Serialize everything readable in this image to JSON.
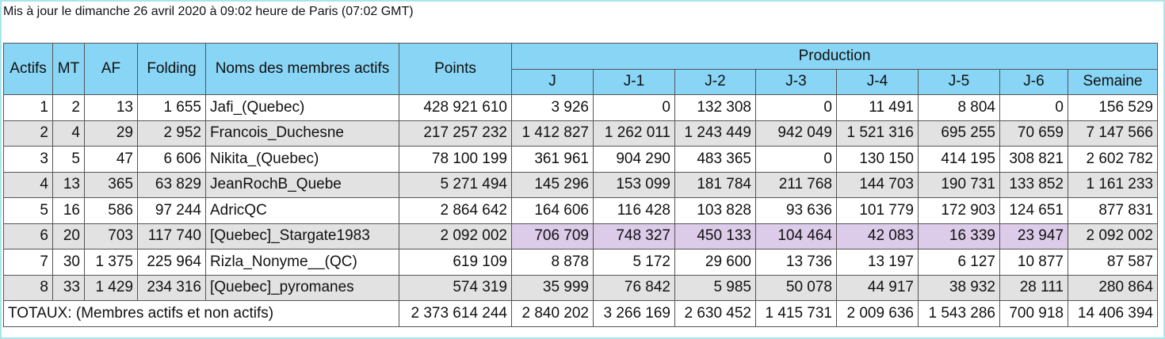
{
  "header": {
    "updated": "Mis à jour le dimanche 26 avril 2020 à 09:02 heure de Paris (07:02 GMT)"
  },
  "table": {
    "columns": [
      "Actifs",
      "MT",
      "AF",
      "Folding",
      "Noms des membres actifs",
      "Points"
    ],
    "production_label": "Production",
    "production_columns": [
      "J",
      "J-1",
      "J-2",
      "J-3",
      "J-4",
      "J-5",
      "J-6",
      "Semaine"
    ],
    "rows": [
      [
        "1",
        "2",
        "13",
        "1 655",
        "Jafi_(Quebec)",
        "428 921 610",
        "3 926",
        "0",
        "132 308",
        "0",
        "11 491",
        "8 804",
        "0",
        "156 529"
      ],
      [
        "2",
        "4",
        "29",
        "2 952",
        "Francois_Duchesne",
        "217 257 232",
        "1 412 827",
        "1 262 011",
        "1 243 449",
        "942 049",
        "1 521 316",
        "695 255",
        "70 659",
        "7 147 566"
      ],
      [
        "3",
        "5",
        "47",
        "6 606",
        "Nikita_(Quebec)",
        "78 100 199",
        "361 961",
        "904 290",
        "483 365",
        "0",
        "130 150",
        "414 195",
        "308 821",
        "2 602 782"
      ],
      [
        "4",
        "13",
        "365",
        "63 829",
        "JeanRochB_Quebe",
        "5 271 494",
        "145 296",
        "153 099",
        "181 784",
        "211 768",
        "144 703",
        "190 731",
        "133 852",
        "1 161 233"
      ],
      [
        "5",
        "16",
        "586",
        "97 244",
        "AdricQC",
        "2 864 642",
        "164 606",
        "116 428",
        "103 828",
        "93 636",
        "101 779",
        "172 903",
        "124 651",
        "877 831"
      ],
      [
        "6",
        "20",
        "703",
        "117 740",
        "[Quebec]_Stargate1983",
        "2 092 002",
        "706 709",
        "748 327",
        "450 133",
        "104 464",
        "42 083",
        "16 339",
        "23 947",
        "2 092 002"
      ],
      [
        "7",
        "30",
        "1 375",
        "225 964",
        "Rizla_Nonyme__(QC)",
        "619 109",
        "8 878",
        "5 172",
        "29 600",
        "13 736",
        "13 197",
        "6 127",
        "10 877",
        "87 587"
      ],
      [
        "8",
        "33",
        "1 429",
        "234 316",
        "[Quebec]_pyromanes",
        "574 319",
        "35 999",
        "76 842",
        "5 985",
        "50 078",
        "44 917",
        "38 932",
        "28 111",
        "280 864"
      ]
    ],
    "totals": {
      "label": "TOTAUX: (Membres actifs et non actifs)",
      "values": [
        "2 373 614 244",
        "2 840 202",
        "3 266 169",
        "2 630 452",
        "1 415 731",
        "2 009 636",
        "1 543 286",
        "700 918",
        "14 406 394"
      ]
    }
  }
}
